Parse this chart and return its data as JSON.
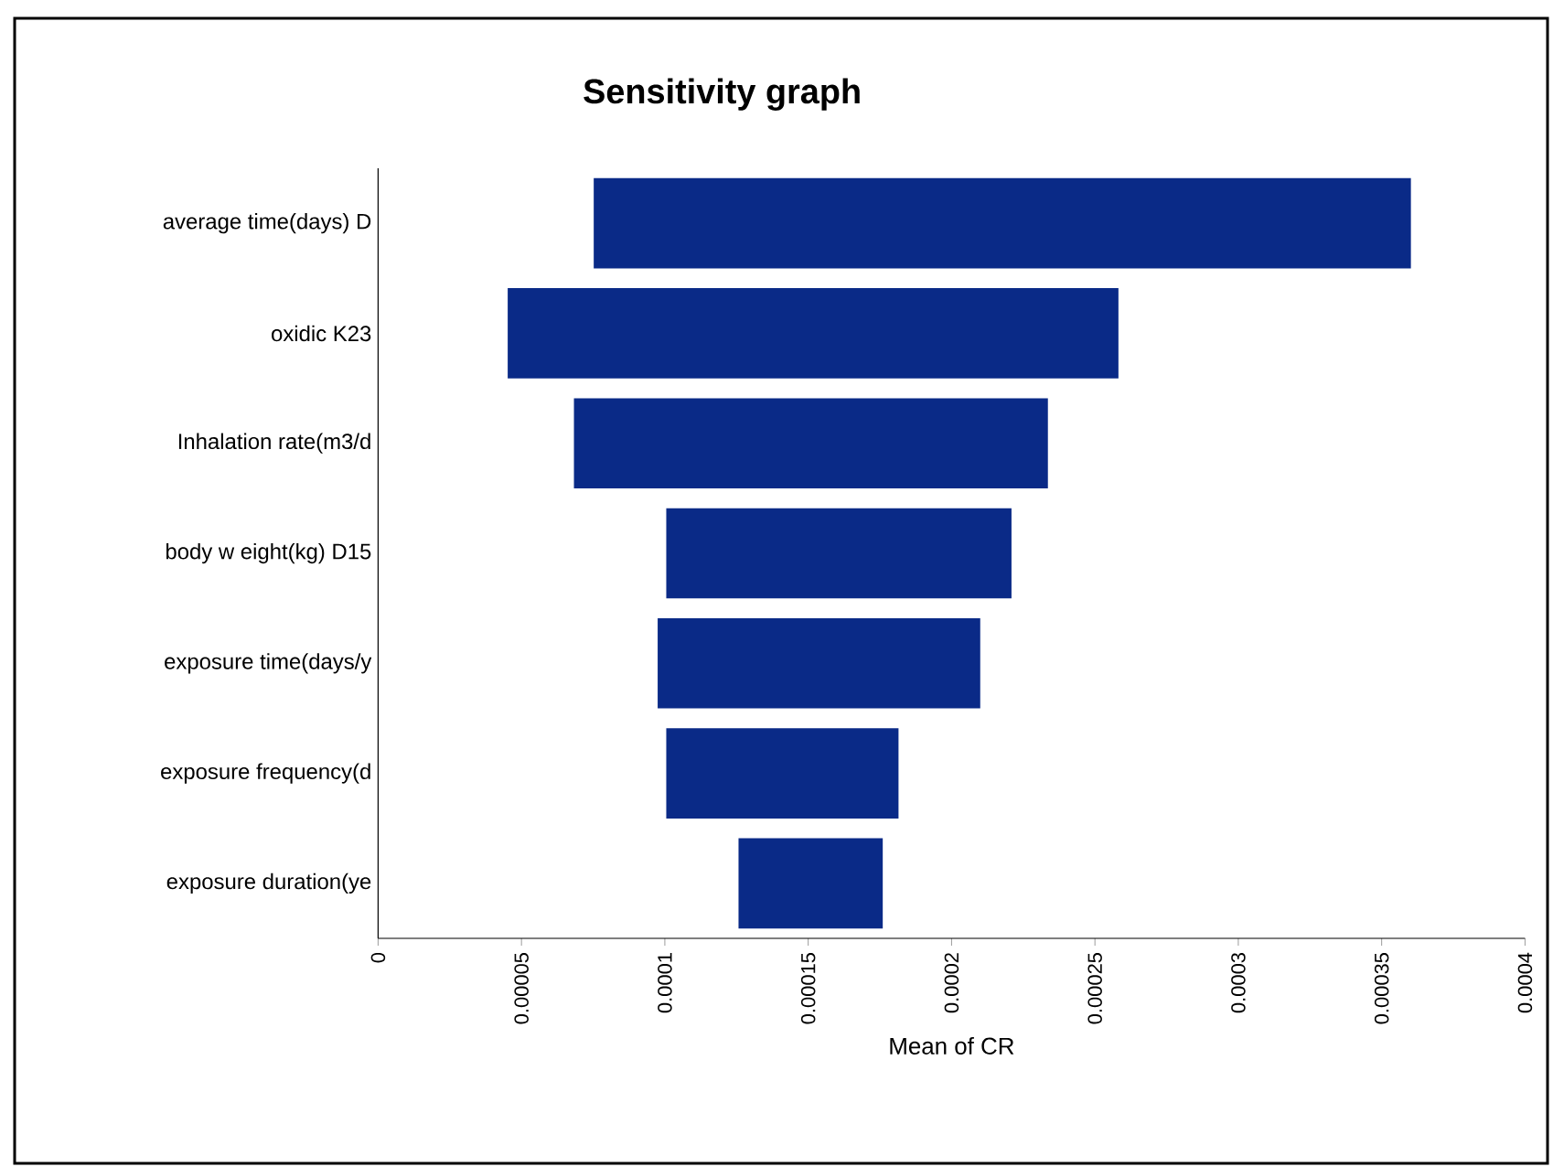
{
  "chart_data": {
    "type": "bar",
    "orientation": "horizontal",
    "title": "Sensitivity graph",
    "xlabel": "Mean of CR",
    "categories": [
      "average time(days) D",
      "oxidic K23",
      "Inhalation rate(m3/d",
      "body w eight(kg) D15",
      "exposure time(days/y",
      "exposure frequency(d",
      "exposure duration(ye"
    ],
    "base": [
      7.52e-05,
      4.52e-05,
      6.83e-05,
      0.0001005,
      9.75e-05,
      0.0001005,
      0.0001257
    ],
    "values": [
      0.000285,
      0.000213,
      0.0001653,
      0.0001204,
      0.0001125,
      8.1e-05,
      5.03e-05
    ],
    "color": "#0a2a87",
    "xlim": [
      0,
      0.0004
    ],
    "xticks": [
      0,
      {
        "value": 5e-05,
        "label": "0.00005"
      },
      {
        "value": 0.0001,
        "label": "0.0001"
      },
      {
        "value": 0.00015,
        "label": "0.00015"
      },
      {
        "value": 0.0002,
        "label": "0.0002"
      },
      {
        "value": 0.00025,
        "label": "0.00025"
      },
      {
        "value": 0.0003,
        "label": "0.0003"
      },
      {
        "value": 0.00035,
        "label": "0.00035"
      },
      {
        "value": 0.0004,
        "label": "0.0004"
      }
    ]
  }
}
